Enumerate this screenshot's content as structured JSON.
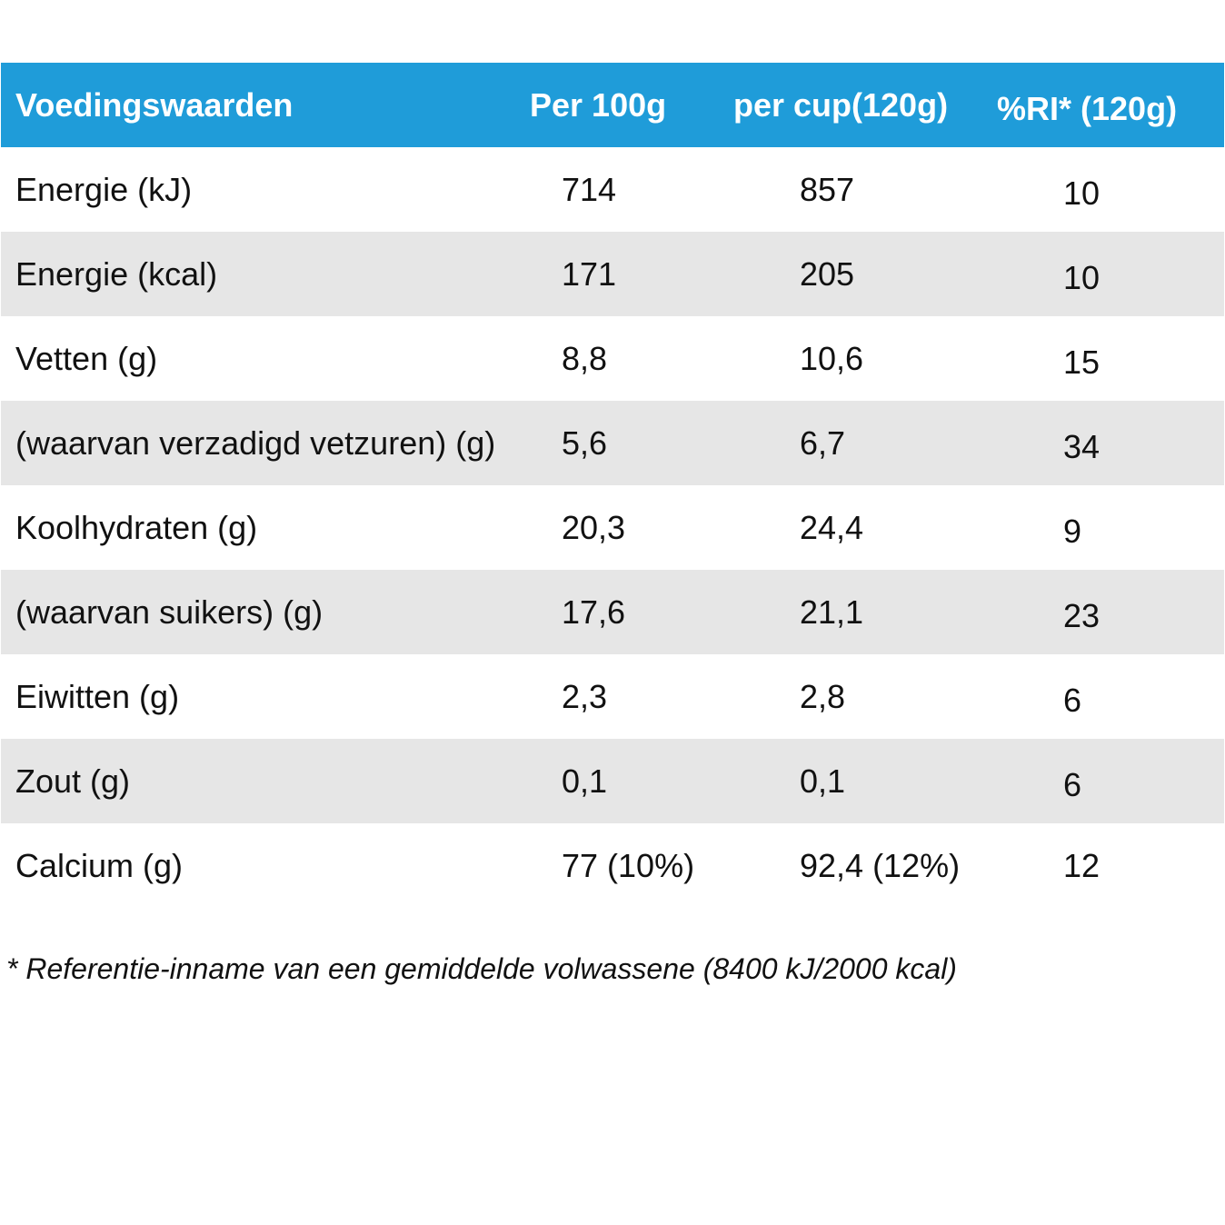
{
  "header": {
    "name": "Voedingswaarden",
    "per100": "Per 100g",
    "per_cup": "per cup(120g)",
    "ri": "%RI* (120g)"
  },
  "colors": {
    "header_bg": "#1f9cd9",
    "header_text": "#ffffff",
    "row_shaded": "#e6e6e6"
  },
  "rows": [
    {
      "name": "Energie (kJ)",
      "per100": "714",
      "per_cup": "857",
      "ri": "10"
    },
    {
      "name": "Energie (kcal)",
      "per100": "171",
      "per_cup": "205",
      "ri": "10"
    },
    {
      "name": "Vetten (g)",
      "per100": "8,8",
      "per_cup": "10,6",
      "ri": "15"
    },
    {
      "name": "(waarvan verzadigd vetzuren) (g)",
      "per100": "5,6",
      "per_cup": "6,7",
      "ri": "34"
    },
    {
      "name": "Koolhydraten (g)",
      "per100": "20,3",
      "per_cup": "24,4",
      "ri": "9"
    },
    {
      "name": "(waarvan suikers) (g)",
      "per100": "17,6",
      "per_cup": "21,1",
      "ri": "23"
    },
    {
      "name": "Eiwitten (g)",
      "per100": "2,3",
      "per_cup": "2,8",
      "ri": "6"
    },
    {
      "name": "Zout (g)",
      "per100": "0,1",
      "per_cup": "0,1",
      "ri": "6"
    },
    {
      "name": "Calcium (g)",
      "per100": "77 (10%)",
      "per_cup": "92,4 (12%)",
      "ri": "12"
    }
  ],
  "footnote": "* Referentie-inname van een gemiddelde volwassene (8400 kJ/2000 kcal)"
}
